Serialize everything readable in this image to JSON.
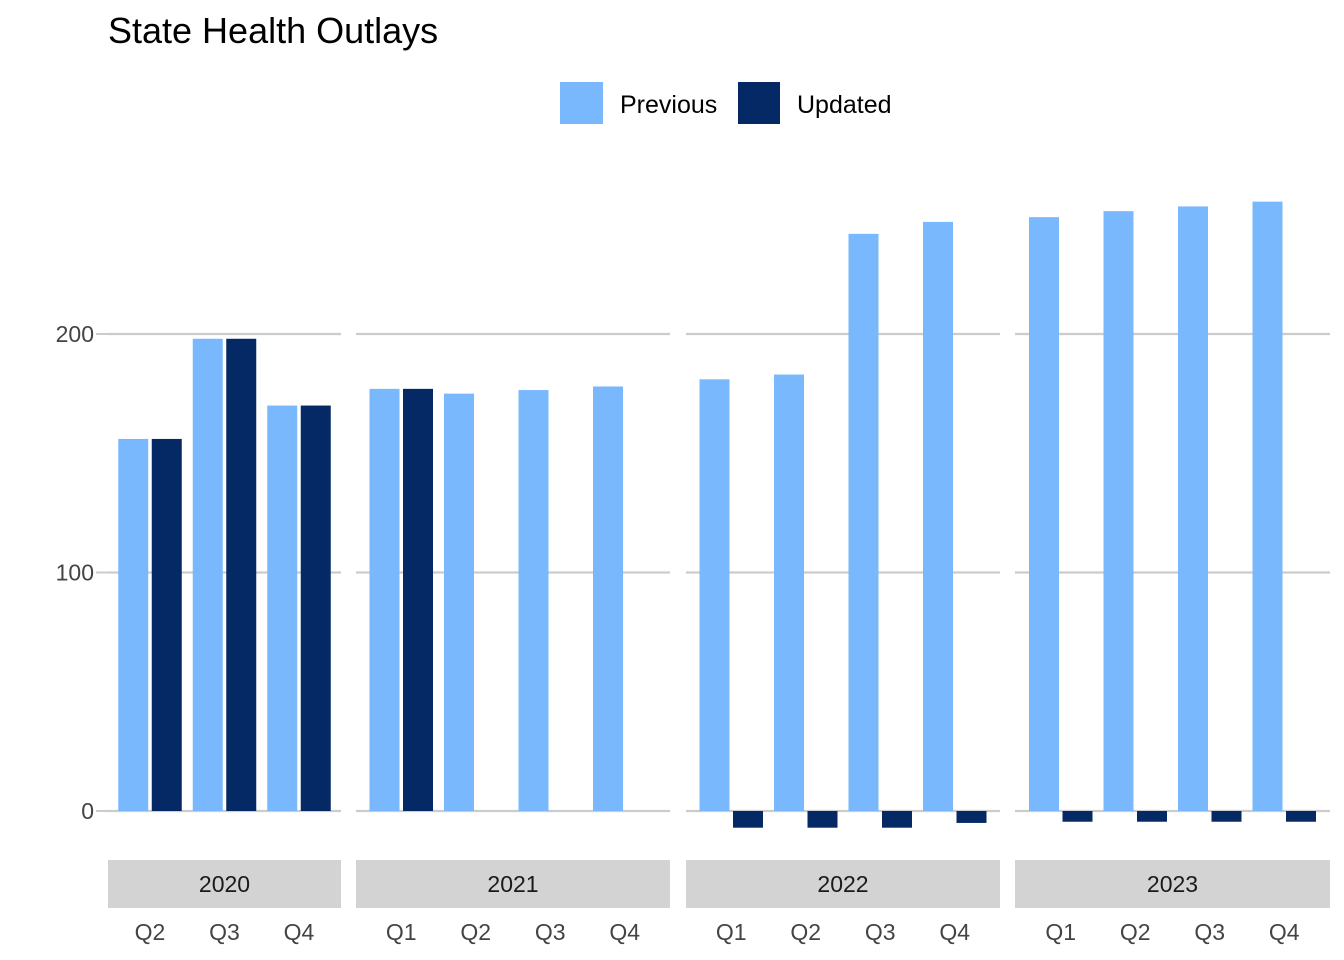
{
  "chart_data": {
    "type": "bar",
    "title": "State Health Outlays",
    "xlabel": "",
    "ylabel": "",
    "ylim": [
      -12,
      270
    ],
    "yticks": [
      0,
      100,
      200
    ],
    "grid": true,
    "legend_position": "top",
    "colors": {
      "Previous": "#7ab8fd",
      "Updated": "#042964",
      "grid": "#cccccc",
      "strip": "#d3d3d3"
    },
    "series_names": [
      "Previous",
      "Updated"
    ],
    "facets": [
      {
        "label": "2020",
        "categories": [
          "Q2",
          "Q3",
          "Q4"
        ],
        "series": [
          {
            "name": "Previous",
            "values": [
              156,
              198,
              170
            ]
          },
          {
            "name": "Updated",
            "values": [
              156,
              198,
              170
            ]
          }
        ]
      },
      {
        "label": "2021",
        "categories": [
          "Q1",
          "Q2",
          "Q3",
          "Q4"
        ],
        "series": [
          {
            "name": "Previous",
            "values": [
              177,
              175,
              176.5,
              178
            ]
          },
          {
            "name": "Updated",
            "values": [
              177,
              null,
              null,
              null
            ]
          }
        ]
      },
      {
        "label": "2022",
        "categories": [
          "Q1",
          "Q2",
          "Q3",
          "Q4"
        ],
        "series": [
          {
            "name": "Previous",
            "values": [
              181,
              183,
              242,
              247
            ]
          },
          {
            "name": "Updated",
            "values": [
              -7,
              -7,
              -7,
              -5
            ]
          }
        ]
      },
      {
        "label": "2023",
        "categories": [
          "Q1",
          "Q2",
          "Q3",
          "Q4"
        ],
        "series": [
          {
            "name": "Previous",
            "values": [
              249,
              251.5,
              253.5,
              255.5
            ]
          },
          {
            "name": "Updated",
            "values": [
              -4.5,
              -4.5,
              -4.5,
              -4.5
            ]
          }
        ]
      }
    ]
  }
}
